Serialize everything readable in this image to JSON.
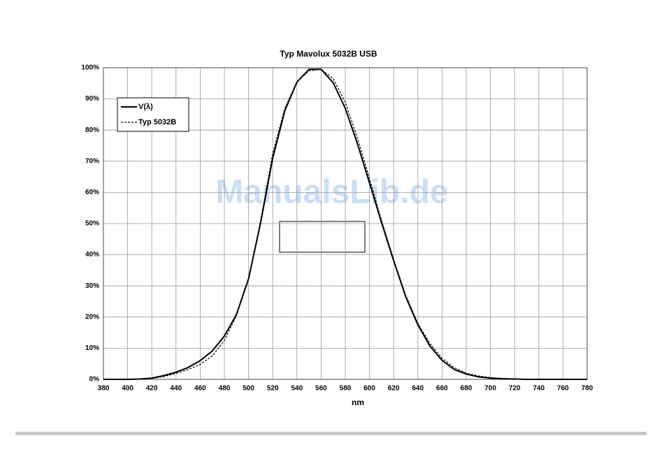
{
  "chart_data": {
    "type": "line",
    "title": "Typ Mavolux 5032B USB",
    "xlabel": "nm",
    "watermark": "ManualsLib.de",
    "x": [
      380,
      390,
      400,
      410,
      420,
      430,
      440,
      450,
      460,
      470,
      480,
      490,
      500,
      510,
      520,
      530,
      540,
      550,
      560,
      570,
      580,
      590,
      600,
      610,
      620,
      630,
      640,
      650,
      660,
      670,
      680,
      690,
      700,
      710,
      720,
      730,
      740,
      750,
      760,
      770,
      780
    ],
    "series": [
      {
        "name": "V(λ)",
        "color": "#000000",
        "line_style": "solid",
        "values": [
          0,
          0,
          0,
          0.1,
          0.4,
          1.2,
          2.3,
          3.8,
          6,
          9.1,
          13.9,
          20.8,
          32.3,
          50.3,
          71,
          86.2,
          95.4,
          99.5,
          99.5,
          95.2,
          87,
          75.7,
          63.1,
          50.3,
          38.1,
          26.5,
          17.5,
          10.7,
          6.1,
          3.2,
          1.7,
          0.8,
          0.4,
          0.2,
          0.1,
          0,
          0,
          0,
          0,
          0,
          0
        ]
      },
      {
        "name": "Typ 5032B",
        "color": "#000000",
        "line_style": "dashed",
        "values": [
          0,
          0,
          0,
          0.1,
          0.3,
          0.9,
          1.9,
          3.1,
          4.8,
          7.5,
          12.5,
          20.5,
          32,
          51,
          72.5,
          87,
          95.5,
          99,
          99.5,
          96.5,
          89,
          77.5,
          64.5,
          51,
          38.5,
          27,
          18,
          11.5,
          6.8,
          3.8,
          2,
          1.1,
          0.6,
          0.3,
          0.1,
          0.1,
          0,
          0,
          0,
          0,
          0
        ]
      }
    ],
    "xlim": [
      380,
      780
    ],
    "xticks": [
      380,
      400,
      420,
      440,
      460,
      480,
      500,
      520,
      540,
      560,
      580,
      600,
      620,
      640,
      660,
      680,
      700,
      720,
      740,
      760,
      780
    ],
    "ylim": [
      0,
      100
    ],
    "yticks": [
      {
        "value": 0,
        "label": "0%"
      },
      {
        "value": 10,
        "label": "10%"
      },
      {
        "value": 20,
        "label": "20%"
      },
      {
        "value": 30,
        "label": "30%"
      },
      {
        "value": 40,
        "label": "40%"
      },
      {
        "value": 50,
        "label": "50%"
      },
      {
        "value": 60,
        "label": "60%"
      },
      {
        "value": 70,
        "label": "70%"
      },
      {
        "value": 80,
        "label": "80%"
      },
      {
        "value": 90,
        "label": "90%"
      },
      {
        "value": 100,
        "label": "100%"
      }
    ],
    "grid": true,
    "legend": "upper left"
  }
}
